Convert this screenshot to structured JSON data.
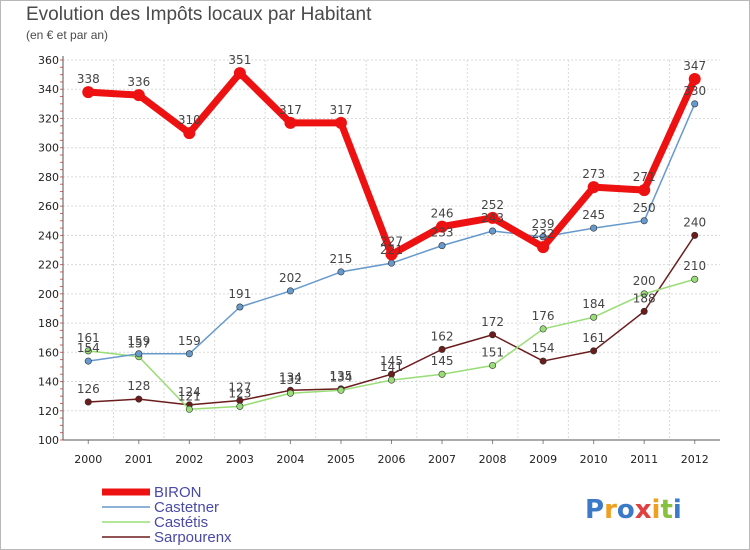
{
  "chart_data": {
    "type": "line",
    "title": "Evolution des Impôts locaux par Habitant",
    "subtitle": "(en € et par an)",
    "xlabel": "",
    "ylabel": "",
    "ylim": [
      100,
      360
    ],
    "yticks": [
      100,
      120,
      140,
      160,
      180,
      200,
      220,
      240,
      260,
      280,
      300,
      320,
      340,
      360
    ],
    "x": [
      "2000",
      "2001",
      "2002",
      "2003",
      "2004",
      "2005",
      "2006",
      "2007",
      "2008",
      "2009",
      "2010",
      "2011",
      "2012"
    ],
    "grid": true,
    "legend_position": "bottom-left",
    "series": [
      {
        "name": "Sarpourenx",
        "color": "#6b1c1c",
        "values": [
          126,
          128,
          124,
          127,
          134,
          135,
          145,
          162,
          172,
          154,
          161,
          188,
          240
        ]
      },
      {
        "name": "Castétis",
        "color": "#99dd77",
        "values": [
          161,
          157,
          121,
          123,
          132,
          134,
          141,
          145,
          151,
          176,
          184,
          200,
          210
        ]
      },
      {
        "name": "Castetner",
        "color": "#6699cc",
        "values": [
          154,
          159,
          159,
          191,
          202,
          215,
          221,
          233,
          243,
          239,
          245,
          250,
          330
        ]
      },
      {
        "name": "BIRON",
        "color": "#ee1111",
        "values": [
          338,
          336,
          310,
          351,
          317,
          317,
          227,
          246,
          252,
          232,
          273,
          271,
          347
        ]
      }
    ]
  },
  "legend": {
    "items": [
      {
        "label": "BIRON",
        "color": "#ee1111"
      },
      {
        "label": "Castetner",
        "color": "#6699cc"
      },
      {
        "label": "Castétis",
        "color": "#99dd77"
      },
      {
        "label": "Sarpourenx",
        "color": "#6b1c1c"
      }
    ]
  },
  "brand": {
    "logo_text": "Proxiti"
  }
}
